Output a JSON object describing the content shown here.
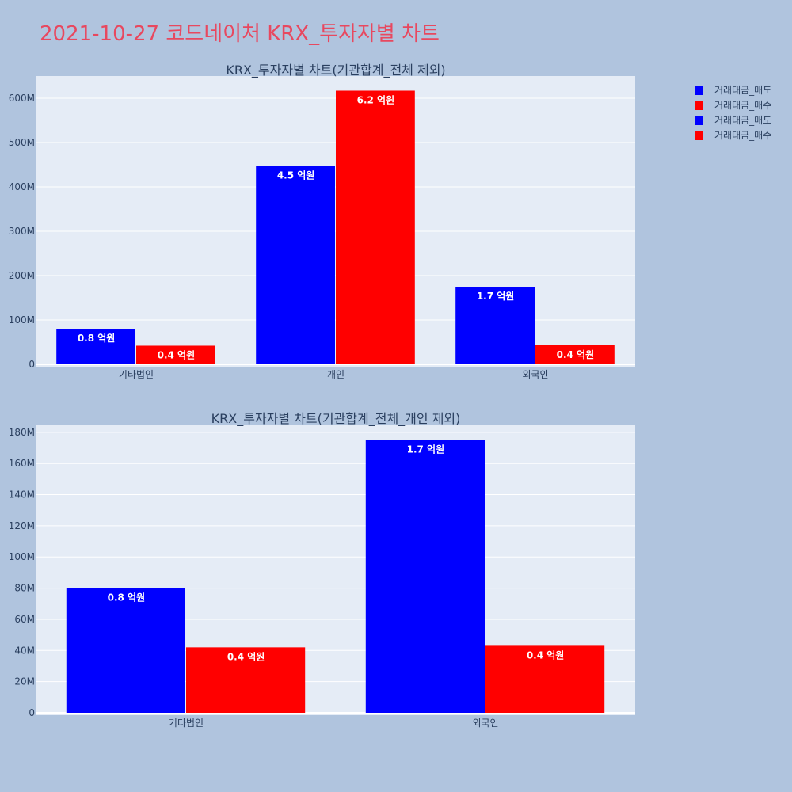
{
  "title": "2021-10-27 코드네이처 KRX_투자자별 차트",
  "legend": [
    {
      "label": "거래대금_매도",
      "color": "#0000ff"
    },
    {
      "label": "거래대금_매수",
      "color": "#ff0000"
    },
    {
      "label": "거래대금_매도",
      "color": "#0000ff"
    },
    {
      "label": "거래대금_매수",
      "color": "#ff0000"
    }
  ],
  "chart_data": [
    {
      "type": "bar",
      "title": "KRX_투자자별 차트(기관합계_전체 제외)",
      "categories": [
        "기타법인",
        "개인",
        "외국인"
      ],
      "series": [
        {
          "name": "거래대금_매도",
          "color": "#0000ff",
          "values": [
            80000000,
            447000000,
            175000000
          ],
          "labels": [
            "0.8 억원",
            "4.5 억원",
            "1.7 억원"
          ]
        },
        {
          "name": "거래대금_매수",
          "color": "#ff0000",
          "values": [
            42000000,
            617000000,
            43000000
          ],
          "labels": [
            "0.4 억원",
            "6.2 억원",
            "0.4 억원"
          ]
        }
      ],
      "yticks": [
        0,
        100000000,
        200000000,
        300000000,
        400000000,
        500000000,
        600000000
      ],
      "ytick_labels": [
        "0",
        "100M",
        "200M",
        "300M",
        "400M",
        "500M",
        "600M"
      ],
      "ylim": [
        0,
        650000000
      ],
      "grid": true
    },
    {
      "type": "bar",
      "title": "KRX_투자자별 차트(기관합계_전체_개인 제외)",
      "categories": [
        "기타법인",
        "외국인"
      ],
      "series": [
        {
          "name": "거래대금_매도",
          "color": "#0000ff",
          "values": [
            80000000,
            175000000
          ],
          "labels": [
            "0.8 억원",
            "1.7 억원"
          ]
        },
        {
          "name": "거래대금_매수",
          "color": "#ff0000",
          "values": [
            42000000,
            43000000
          ],
          "labels": [
            "0.4 억원",
            "0.4 억원"
          ]
        }
      ],
      "yticks": [
        0,
        20000000,
        40000000,
        60000000,
        80000000,
        100000000,
        120000000,
        140000000,
        160000000,
        180000000
      ],
      "ytick_labels": [
        "0",
        "20M",
        "40M",
        "60M",
        "80M",
        "100M",
        "120M",
        "140M",
        "160M",
        "180M"
      ],
      "ylim": [
        0,
        185000000
      ],
      "grid": true
    }
  ]
}
